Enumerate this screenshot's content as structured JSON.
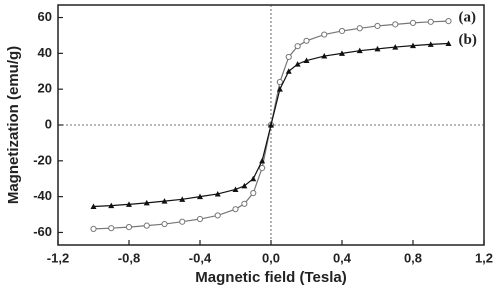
{
  "chart_data": {
    "type": "line",
    "xlabel": "Magnetic field (Tesla)",
    "ylabel": "Magnetization (emu/g)",
    "x": [
      -1,
      -0.9,
      -0.8,
      -0.7,
      -0.6,
      -0.5,
      -0.4,
      -0.3,
      -0.2,
      -0.15,
      -0.1,
      -0.05,
      0,
      0.05,
      0.1,
      0.15,
      0.2,
      0.3,
      0.4,
      0.5,
      0.6,
      0.7,
      0.8,
      0.9,
      1
    ],
    "series": [
      {
        "name": "(a)",
        "color": "#777777",
        "marker": "circle",
        "values": [
          -58,
          -57.6,
          -57,
          -56.2,
          -55.3,
          -54,
          -52.5,
          -50.5,
          -47,
          -44,
          -38,
          -24,
          0,
          24,
          38,
          44,
          47,
          50.5,
          52.5,
          54,
          55.3,
          56.2,
          57,
          57.6,
          58
        ]
      },
      {
        "name": "(b)",
        "color": "#111111",
        "marker": "triangle",
        "values": [
          -45.5,
          -45,
          -44.3,
          -43.5,
          -42.5,
          -41.5,
          -40,
          -38.5,
          -36,
          -34,
          -30,
          -20,
          0,
          20,
          30,
          34,
          36,
          38.5,
          40,
          41.5,
          42.5,
          43.5,
          44.3,
          45,
          45.5
        ]
      }
    ],
    "xlim": [
      -1.2,
      1.2
    ],
    "xticks": [
      {
        "value": -1.2,
        "label": "-1,2"
      },
      {
        "value": -0.8,
        "label": "-0,8"
      },
      {
        "value": -0.4,
        "label": "-0,4"
      },
      {
        "value": 0,
        "label": "0,0"
      },
      {
        "value": 0.4,
        "label": "0,4"
      },
      {
        "value": 0.8,
        "label": "0,8"
      },
      {
        "value": 1.2,
        "label": "1,2"
      }
    ],
    "ylim": [
      -67,
      67
    ],
    "yticks": [
      -60,
      -40,
      -20,
      0,
      20,
      40,
      60
    ]
  }
}
